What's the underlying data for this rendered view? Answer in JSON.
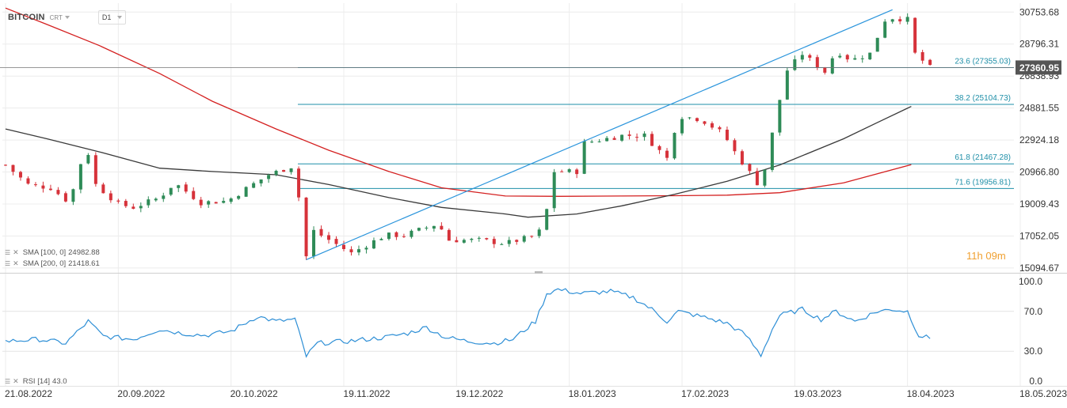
{
  "header": {
    "symbol": "BITCOIN",
    "source": "CRT",
    "interval": "D1"
  },
  "indicators": {
    "sma100": {
      "label": "SMA [100, 0]",
      "value": "24982.88",
      "color": "#3a3a3a"
    },
    "sma200": {
      "label": "SMA [200, 0]",
      "value": "21418.61",
      "color": "#d42020"
    },
    "rsi": {
      "label": "RSI [14]",
      "value": "43.0",
      "color": "#2e8fd6"
    }
  },
  "countdown": {
    "hours": "11",
    "h_unit": "h",
    "minutes": "09",
    "m_unit": "m"
  },
  "colors": {
    "up": "#2e8b57",
    "down": "#d6323a",
    "fib": "#1f8fa8",
    "trend": "#2b95dc",
    "grid": "#ececec",
    "price_tag": "#555555"
  },
  "chart_data": {
    "type": "candlestick",
    "price_axis": {
      "ticks": [
        "30753.68",
        "28796.31",
        "26838.93",
        "24881.55",
        "22924.18",
        "20966.80",
        "19009.43",
        "17052.05",
        "15094.67"
      ],
      "range": [
        14800,
        31300
      ]
    },
    "last_price": "27360.95",
    "x_labels": [
      "21.08.2022",
      "20.09.2022",
      "20.10.2022",
      "19.11.2022",
      "19.12.2022",
      "18.01.2023",
      "17.02.2023",
      "19.03.2023",
      "18.04.2023",
      "18.05.2023"
    ],
    "fib_levels": [
      {
        "label": "23.6 (27355.03)",
        "value": 27355.03
      },
      {
        "label": "38.2 (25104.73)",
        "value": 25104.73
      },
      {
        "label": "61.8 (21467.28)",
        "value": 21467.28
      },
      {
        "label": "71.6 (19956.81)",
        "value": 19956.81
      }
    ],
    "trendline": {
      "from": {
        "date": "2022-11-09",
        "price": 15600
      },
      "to": {
        "date": "2023-04-14",
        "price": 30900
      }
    },
    "sma200_points": [
      [
        "2022-08-21",
        31000
      ],
      [
        "2022-09-01",
        30000
      ],
      [
        "2022-09-15",
        28700
      ],
      [
        "2022-10-01",
        27000
      ],
      [
        "2022-10-15",
        25300
      ],
      [
        "2022-11-01",
        23600
      ],
      [
        "2022-11-15",
        22300
      ],
      [
        "2022-12-01",
        21000
      ],
      [
        "2022-12-15",
        20000
      ],
      [
        "2023-01-01",
        19500
      ],
      [
        "2023-01-15",
        19480
      ],
      [
        "2023-02-01",
        19500
      ],
      [
        "2023-02-15",
        19520
      ],
      [
        "2023-03-01",
        19550
      ],
      [
        "2023-03-15",
        19700
      ],
      [
        "2023-04-01",
        20300
      ],
      [
        "2023-04-19",
        21418.61
      ]
    ],
    "sma100_points": [
      [
        "2022-08-21",
        23600
      ],
      [
        "2022-09-01",
        23000
      ],
      [
        "2022-09-15",
        22200
      ],
      [
        "2022-10-01",
        21200
      ],
      [
        "2022-10-15",
        21000
      ],
      [
        "2022-11-01",
        20800
      ],
      [
        "2022-11-15",
        20200
      ],
      [
        "2022-12-01",
        19400
      ],
      [
        "2022-12-15",
        18800
      ],
      [
        "2023-01-01",
        18400
      ],
      [
        "2023-01-07",
        18200
      ],
      [
        "2023-01-20",
        18400
      ],
      [
        "2023-02-01",
        18900
      ],
      [
        "2023-02-15",
        19600
      ],
      [
        "2023-03-01",
        20400
      ],
      [
        "2023-03-15",
        21400
      ],
      [
        "2023-04-01",
        23000
      ],
      [
        "2023-04-10",
        24000
      ],
      [
        "2023-04-19",
        24982.88
      ]
    ],
    "close_path": [
      [
        "2022-08-21",
        21400
      ],
      [
        "2022-08-27",
        20200
      ],
      [
        "2022-09-02",
        20000
      ],
      [
        "2022-09-07",
        19100
      ],
      [
        "2022-09-10",
        21500
      ],
      [
        "2022-09-13",
        22400
      ],
      [
        "2022-09-14",
        20200
      ],
      [
        "2022-09-20",
        19000
      ],
      [
        "2022-09-24",
        18800
      ],
      [
        "2022-10-01",
        19400
      ],
      [
        "2022-10-05",
        20300
      ],
      [
        "2022-10-12",
        19100
      ],
      [
        "2022-10-19",
        19200
      ],
      [
        "2022-10-25",
        20100
      ],
      [
        "2022-10-30",
        20800
      ],
      [
        "2022-11-05",
        21300
      ],
      [
        "2022-11-08",
        18500
      ],
      [
        "2022-11-09",
        15800
      ],
      [
        "2022-11-10",
        17500
      ],
      [
        "2022-11-21",
        16000
      ],
      [
        "2022-11-30",
        17100
      ],
      [
        "2022-12-05",
        17100
      ],
      [
        "2022-12-14",
        17800
      ],
      [
        "2022-12-17",
        16800
      ],
      [
        "2022-12-25",
        16800
      ],
      [
        "2023-01-01",
        16600
      ],
      [
        "2023-01-08",
        17000
      ],
      [
        "2023-01-11",
        17500
      ],
      [
        "2023-01-14",
        21000
      ],
      [
        "2023-01-20",
        21000
      ],
      [
        "2023-01-21",
        22700
      ],
      [
        "2023-02-01",
        23200
      ],
      [
        "2023-02-07",
        23200
      ],
      [
        "2023-02-13",
        21800
      ],
      [
        "2023-02-16",
        24400
      ],
      [
        "2023-02-22",
        24200
      ],
      [
        "2023-02-28",
        23300
      ],
      [
        "2023-03-03",
        22200
      ],
      [
        "2023-03-09",
        20300
      ],
      [
        "2023-03-10",
        20200
      ],
      [
        "2023-03-12",
        22100
      ],
      [
        "2023-03-14",
        24500
      ],
      [
        "2023-03-17",
        27200
      ],
      [
        "2023-03-21",
        28200
      ],
      [
        "2023-03-27",
        27100
      ],
      [
        "2023-03-30",
        28400
      ],
      [
        "2023-04-03",
        27800
      ],
      [
        "2023-04-09",
        28300
      ],
      [
        "2023-04-11",
        30200
      ],
      [
        "2023-04-14",
        30400
      ],
      [
        "2023-04-18",
        30300
      ],
      [
        "2023-04-19",
        28800
      ],
      [
        "2023-04-20",
        28200
      ],
      [
        "2023-04-24",
        27360.95
      ]
    ],
    "rsi": {
      "label": "RSI [14]",
      "last": 43.0,
      "ticks": [
        "100.0",
        "70.0",
        "30.0",
        "0.0"
      ],
      "range": [
        0,
        100
      ],
      "points": [
        [
          "2022-08-21",
          40
        ],
        [
          "2022-08-30",
          42
        ],
        [
          "2022-09-06",
          38
        ],
        [
          "2022-09-12",
          60
        ],
        [
          "2022-09-16",
          45
        ],
        [
          "2022-09-24",
          42
        ],
        [
          "2022-10-01",
          52
        ],
        [
          "2022-10-07",
          48
        ],
        [
          "2022-10-13",
          46
        ],
        [
          "2022-10-20",
          50
        ],
        [
          "2022-10-27",
          65
        ],
        [
          "2022-11-01",
          60
        ],
        [
          "2022-11-06",
          62
        ],
        [
          "2022-11-09",
          25
        ],
        [
          "2022-11-12",
          38
        ],
        [
          "2022-11-20",
          40
        ],
        [
          "2022-11-30",
          44
        ],
        [
          "2022-12-06",
          48
        ],
        [
          "2022-12-11",
          54
        ],
        [
          "2022-12-16",
          44
        ],
        [
          "2022-12-22",
          40
        ],
        [
          "2022-12-29",
          38
        ],
        [
          "2023-01-03",
          42
        ],
        [
          "2023-01-09",
          60
        ],
        [
          "2023-01-12",
          88
        ],
        [
          "2023-01-15",
          92
        ],
        [
          "2023-01-21",
          88
        ],
        [
          "2023-01-29",
          90
        ],
        [
          "2023-02-04",
          84
        ],
        [
          "2023-02-09",
          72
        ],
        [
          "2023-02-13",
          60
        ],
        [
          "2023-02-16",
          70
        ],
        [
          "2023-02-23",
          64
        ],
        [
          "2023-03-01",
          58
        ],
        [
          "2023-03-06",
          46
        ],
        [
          "2023-03-10",
          26
        ],
        [
          "2023-03-13",
          52
        ],
        [
          "2023-03-15",
          66
        ],
        [
          "2023-03-21",
          72
        ],
        [
          "2023-03-26",
          62
        ],
        [
          "2023-03-30",
          70
        ],
        [
          "2023-04-04",
          60
        ],
        [
          "2023-04-10",
          70
        ],
        [
          "2023-04-14",
          72
        ],
        [
          "2023-04-18",
          70
        ],
        [
          "2023-04-21",
          46
        ],
        [
          "2023-04-24",
          43
        ]
      ]
    }
  }
}
